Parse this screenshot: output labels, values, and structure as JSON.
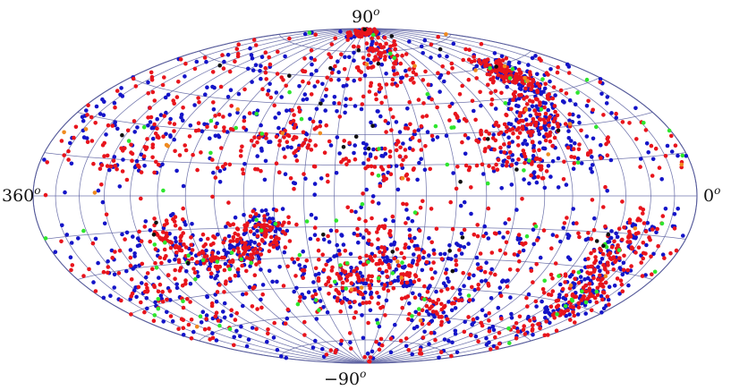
{
  "labels": {
    "top": {
      "value": "90",
      "unit": "o"
    },
    "bottom": {
      "value": "−90",
      "unit": "o"
    },
    "left": {
      "value": "360",
      "unit": "o"
    },
    "right": {
      "value": "0",
      "unit": "o"
    }
  },
  "projection": "aitoff-hammer",
  "grid": true,
  "colors": {
    "grid": "#5a5fa0",
    "outline": "#4a4f90",
    "background": "#ffffff"
  },
  "series": [
    {
      "color_name": "red",
      "color": "#e8141c"
    },
    {
      "color_name": "blue",
      "color": "#1414c8"
    },
    {
      "color_name": "green",
      "color": "#2ee62e"
    },
    {
      "color_name": "orange",
      "color": "#f08a1e"
    },
    {
      "color_name": "black",
      "color": "#111111"
    }
  ]
}
